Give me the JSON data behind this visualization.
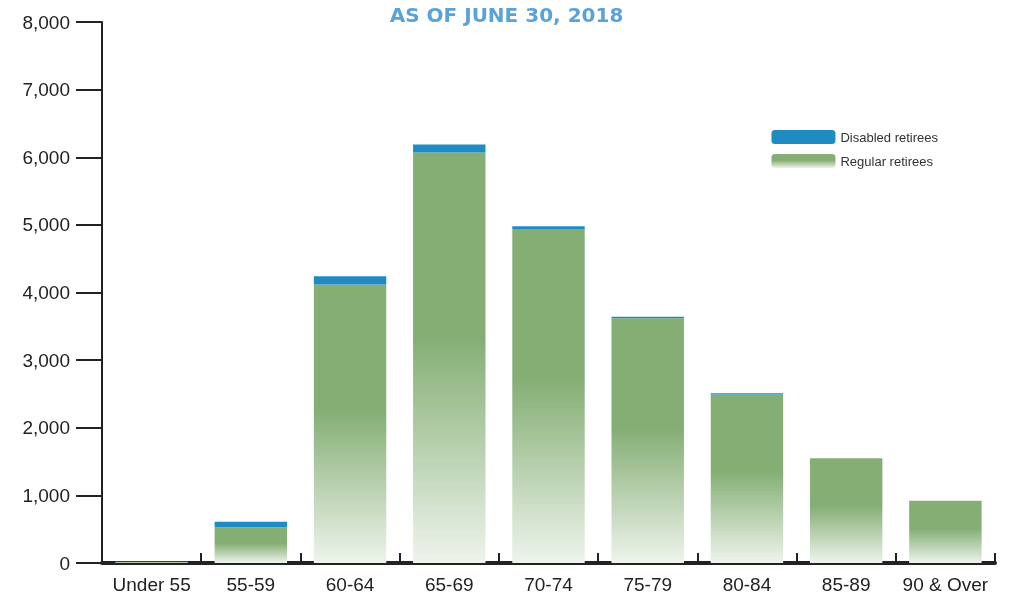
{
  "chart_data": {
    "type": "bar",
    "subtitle": "AS OF JUNE 30, 2018",
    "stacked": true,
    "categories": [
      "Under 55",
      "55-59",
      "60-64",
      "65-69",
      "70-74",
      "75-79",
      "80-84",
      "85-89",
      "90 & Over"
    ],
    "series": [
      {
        "name": "Regular retirees",
        "color": "#84ae74",
        "values": [
          20,
          530,
          4120,
          6070,
          4940,
          3620,
          2490,
          1550,
          920
        ]
      },
      {
        "name": "Disabled retirees",
        "color": "#1e8bc3",
        "values": [
          0,
          80,
          120,
          120,
          40,
          20,
          20,
          null,
          0
        ]
      }
    ],
    "ylim": [
      0,
      8000
    ],
    "yticks": [
      {
        "value": 0,
        "label": "0"
      },
      {
        "value": 1000,
        "label": "1,000"
      },
      {
        "value": 2000,
        "label": "2,000"
      },
      {
        "value": 3000,
        "label": "3,000"
      },
      {
        "value": 4000,
        "label": "4,000"
      },
      {
        "value": 5000,
        "label": "5,000"
      },
      {
        "value": 6000,
        "label": "6,000"
      },
      {
        "value": 7000,
        "label": "7,000"
      },
      {
        "value": 8000,
        "label": "8,000"
      }
    ],
    "grid": false,
    "legend": "top right"
  }
}
